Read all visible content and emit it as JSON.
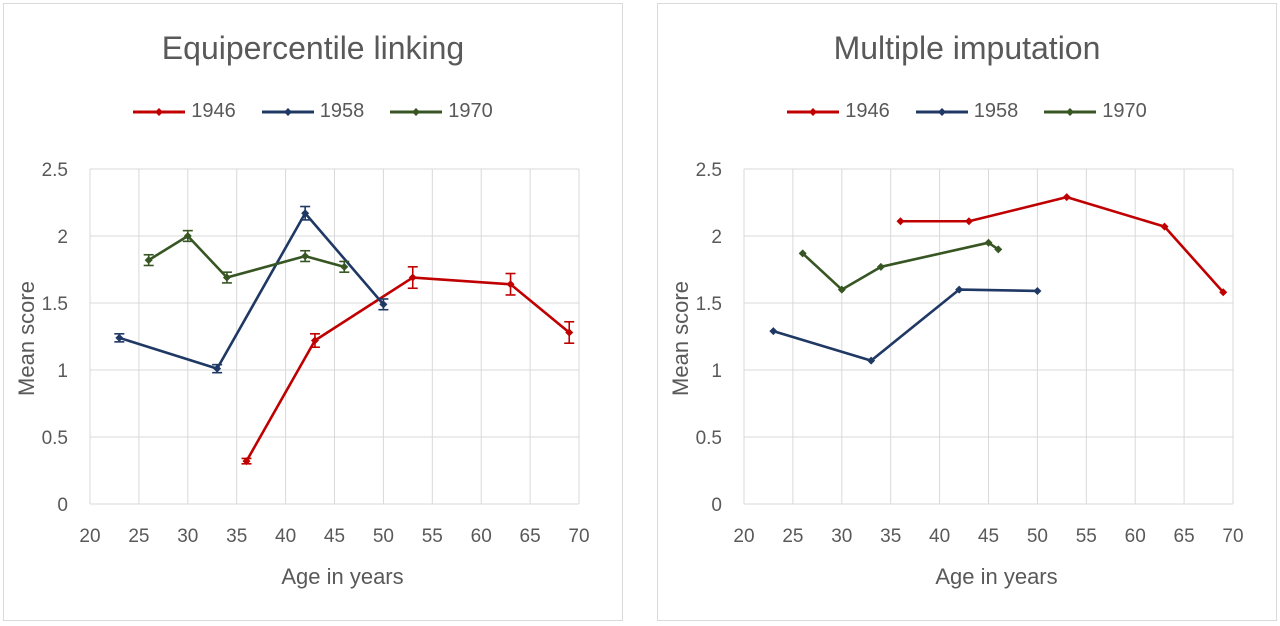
{
  "chart_data": [
    {
      "type": "line",
      "title": "Equipercentile linking",
      "xlabel": "Age in years",
      "ylabel": "Mean score",
      "xlim": [
        20,
        70
      ],
      "ylim": [
        0,
        2.5
      ],
      "xticks": [
        "20",
        "25",
        "30",
        "35",
        "40",
        "45",
        "50",
        "55",
        "60",
        "65",
        "70"
      ],
      "yticks": [
        "0",
        "0.5",
        "1",
        "1.5",
        "2",
        "2.5"
      ],
      "grid": true,
      "legend": "top-center",
      "error_bars": true,
      "series": [
        {
          "name": "1946",
          "color": "#c00000",
          "x": [
            36,
            43,
            53,
            63,
            69
          ],
          "y": [
            0.32,
            1.22,
            1.69,
            1.64,
            1.28
          ],
          "err": [
            0.02,
            0.05,
            0.08,
            0.08,
            0.08
          ]
        },
        {
          "name": "1958",
          "color": "#1f3864",
          "x": [
            23,
            33,
            42,
            50
          ],
          "y": [
            1.24,
            1.01,
            2.17,
            1.49
          ],
          "err": [
            0.03,
            0.03,
            0.05,
            0.04
          ]
        },
        {
          "name": "1970",
          "color": "#375623",
          "x": [
            26,
            30,
            34,
            42,
            46
          ],
          "y": [
            1.82,
            2.0,
            1.69,
            1.85,
            1.77
          ],
          "err": [
            0.04,
            0.04,
            0.04,
            0.04,
            0.04
          ]
        }
      ]
    },
    {
      "type": "line",
      "title": "Multiple imputation",
      "xlabel": "Age in years",
      "ylabel": "Mean score",
      "xlim": [
        20,
        70
      ],
      "ylim": [
        0,
        2.5
      ],
      "xticks": [
        "20",
        "25",
        "30",
        "35",
        "40",
        "45",
        "50",
        "55",
        "60",
        "65",
        "70"
      ],
      "yticks": [
        "0",
        "0.5",
        "1",
        "1.5",
        "2",
        "2.5"
      ],
      "grid": true,
      "legend": "top-center",
      "error_bars": false,
      "series": [
        {
          "name": "1946",
          "color": "#c00000",
          "x": [
            36,
            43,
            53,
            63,
            69
          ],
          "y": [
            2.11,
            2.11,
            2.29,
            2.07,
            1.58
          ]
        },
        {
          "name": "1958",
          "color": "#1f3864",
          "x": [
            23,
            33,
            42,
            50
          ],
          "y": [
            1.29,
            1.07,
            1.6,
            1.59
          ]
        },
        {
          "name": "1970",
          "color": "#375623",
          "x": [
            26,
            30,
            34,
            45,
            46
          ],
          "y": [
            1.87,
            1.6,
            1.77,
            1.95,
            1.9
          ]
        }
      ]
    }
  ]
}
